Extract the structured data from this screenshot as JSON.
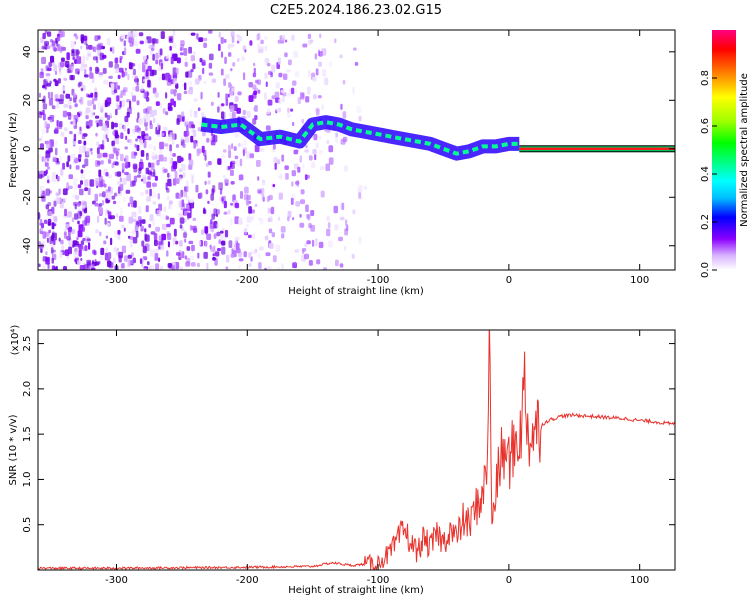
{
  "page_title": "C2E5.2024.186.23.02.G15",
  "chart_data": [
    {
      "type": "heatmap",
      "title": "C2E5.2024.186.23.02.G15",
      "xlabel": "Height of straight line (km)",
      "ylabel": "Frequency (Hz)",
      "xlim": [
        -360,
        127
      ],
      "ylim": [
        -50,
        49
      ],
      "x_ticks": [
        -300,
        -200,
        -100,
        0,
        100
      ],
      "x_tick_labels": [
        "-300",
        "-200",
        "-100",
        "0",
        "100"
      ],
      "y_ticks": [
        -40,
        -20,
        0,
        20,
        40
      ],
      "y_tick_labels": [
        "-40",
        "-20",
        "0",
        "20",
        "40"
      ],
      "colorbar": {
        "label": "Normalized spectral amplitude",
        "range": [
          0,
          1
        ],
        "ticks": [
          0.0,
          0.2,
          0.4,
          0.6,
          0.8
        ],
        "tick_labels": [
          "0.0",
          "0.2",
          "0.4",
          "0.6",
          "0.8"
        ]
      },
      "ridge": {
        "x": [
          -235,
          -220,
          -205,
          -190,
          -175,
          -160,
          -150,
          -140,
          -130,
          -120,
          -110,
          -100,
          -90,
          -80,
          -70,
          -60,
          -50,
          -40,
          -30,
          -20,
          -10,
          0,
          8
        ],
        "y": [
          10,
          9,
          10,
          4,
          5,
          3,
          10,
          11,
          10,
          8,
          7,
          6,
          5,
          4,
          3,
          2,
          0,
          -2,
          -1,
          1,
          1,
          2,
          2
        ]
      },
      "tone_line": {
        "x_start": 8,
        "x_end": 127,
        "y": 0
      }
    },
    {
      "type": "line",
      "title": "",
      "xlabel": "Height of straight line (km)",
      "ylabel": "SNR (10 * v/v)",
      "scale_label": "(x10⁴)",
      "xlim": [
        -360,
        127
      ],
      "ylim": [
        0,
        2.65
      ],
      "x_ticks": [
        -300,
        -200,
        -100,
        0,
        100
      ],
      "x_tick_labels": [
        "-300",
        "-200",
        "-100",
        "0",
        "100"
      ],
      "y_ticks": [
        0.5,
        1.0,
        1.5,
        2.0,
        2.5
      ],
      "y_tick_labels": [
        "0.5",
        "1.0",
        "1.5",
        "2.0",
        "2.5"
      ],
      "series": [
        {
          "color": "#e8332d",
          "x": [
            -360,
            -300,
            -200,
            -150,
            -135,
            -120,
            -100,
            -90,
            -80,
            -75,
            -70,
            -65,
            -60,
            -55,
            -50,
            -45,
            -40,
            -35,
            -30,
            -25,
            -20,
            -17,
            -15,
            -13,
            -10,
            -5,
            0,
            5,
            10,
            12,
            15,
            20,
            25,
            30,
            40,
            50,
            60,
            70,
            80,
            90,
            100,
            110,
            120,
            127
          ],
          "y": [
            0.02,
            0.02,
            0.03,
            0.04,
            0.08,
            0.05,
            0.08,
            0.2,
            0.45,
            0.3,
            0.2,
            0.35,
            0.25,
            0.4,
            0.3,
            0.45,
            0.35,
            0.55,
            0.5,
            0.7,
            0.85,
            1.05,
            2.6,
            0.5,
            0.9,
            1.3,
            1.2,
            1.4,
            1.6,
            2.1,
            1.45,
            1.55,
            1.6,
            1.65,
            1.7,
            1.71,
            1.7,
            1.69,
            1.68,
            1.67,
            1.65,
            1.64,
            1.62,
            1.61
          ]
        }
      ]
    }
  ]
}
